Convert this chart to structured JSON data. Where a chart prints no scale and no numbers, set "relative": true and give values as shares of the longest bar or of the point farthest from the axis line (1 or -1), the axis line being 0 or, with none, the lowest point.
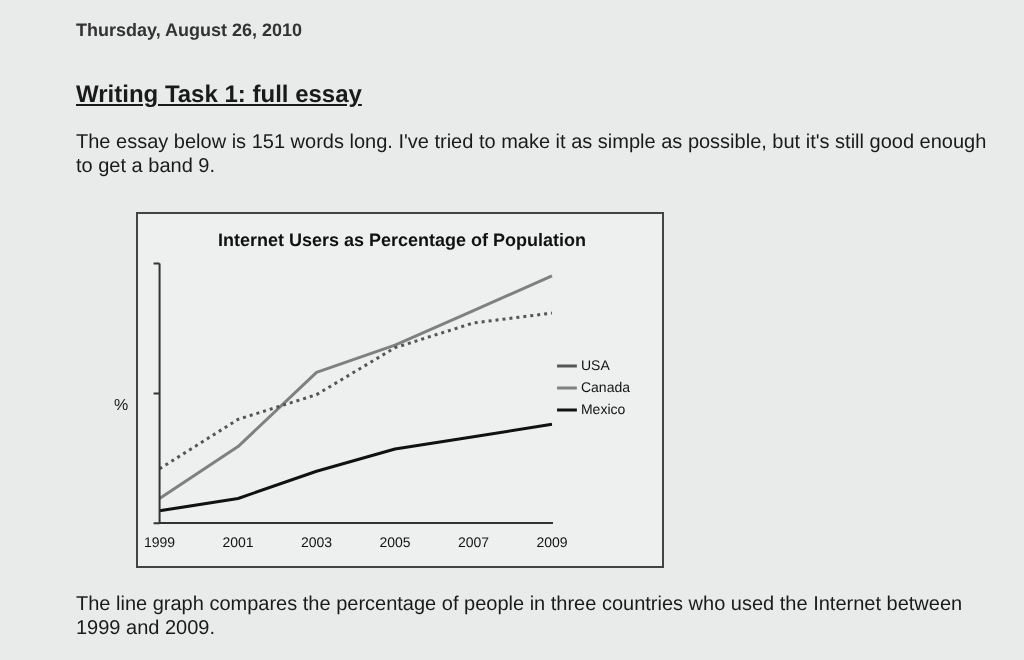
{
  "chart_data": {
    "type": "line",
    "title": "Internet Users as Percentage of Population",
    "ylabel": "%",
    "relative": true,
    "categories": [
      "1999",
      "2001",
      "2003",
      "2005",
      "2007",
      "2009"
    ],
    "series": [
      {
        "name": "USA",
        "color": "#555555",
        "line_style": "dotted",
        "values": [
          0.22,
          0.42,
          0.52,
          0.71,
          0.81,
          0.85
        ]
      },
      {
        "name": "Canada",
        "color": "#808080",
        "line_style": "solid",
        "values": [
          0.1,
          0.31,
          0.61,
          0.72,
          0.86,
          1
        ]
      },
      {
        "name": "Mexico",
        "color": "#111111",
        "line_style": "solid",
        "values": [
          0.05,
          0.1,
          0.21,
          0.3,
          0.35,
          0.4
        ]
      }
    ],
    "legend": "right",
    "grid": false,
    "marker": "none",
    "annotations": [
      "Thursday, August 26, 2010",
      "Writing Task 1: full essay",
      "The essay below is 151 words long. I've tried to make it as simple as possible, but it's still good enough to get a band 9.",
      "The line graph compares the percentage of people in three countries who used the Internet between 1999 and 2009."
    ]
  }
}
